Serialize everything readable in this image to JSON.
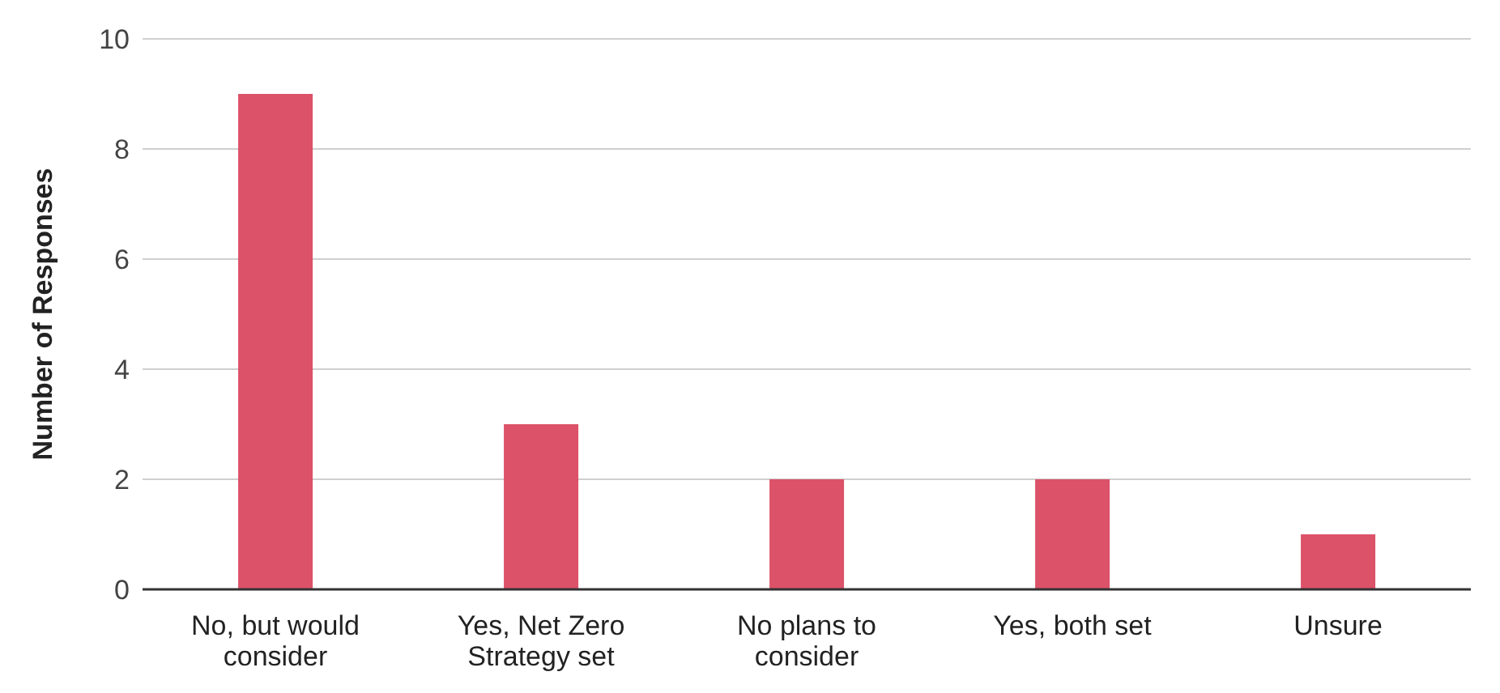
{
  "chart_data": {
    "type": "bar",
    "ylabel": "Number of Responses",
    "categories": [
      "No, but would consider",
      "Yes, Net Zero Strategy set",
      "No plans to consider",
      "Yes, both set",
      "Unsure"
    ],
    "values": [
      9,
      3,
      2,
      2,
      1
    ],
    "color": "#dc5269",
    "ylim": [
      0,
      10
    ],
    "yticks": [
      0,
      2,
      4,
      6,
      8,
      10
    ],
    "grid": "y",
    "legend": false
  }
}
